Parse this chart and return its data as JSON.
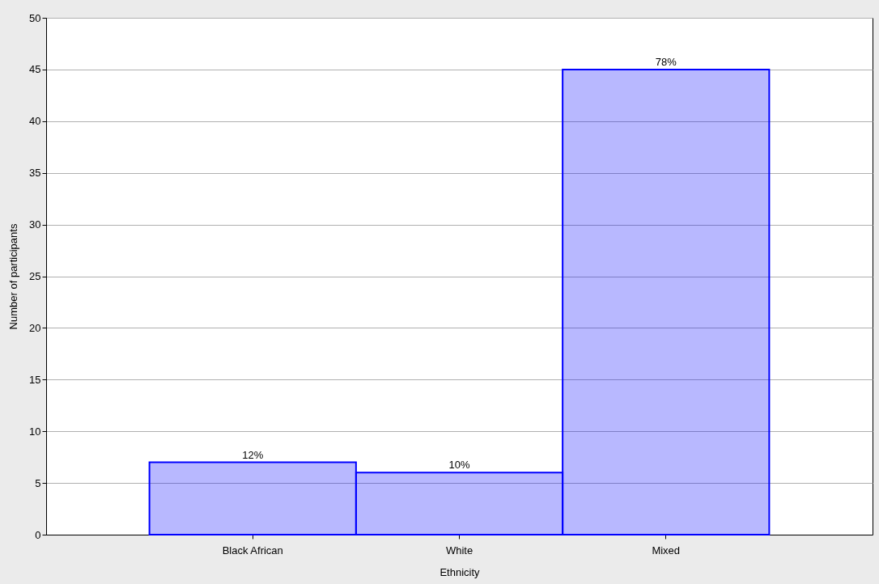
{
  "chart_data": {
    "type": "bar",
    "xlabel": "Ethnicity",
    "ylabel": "Number of participants",
    "categories": [
      "Black African",
      "White",
      "Mixed"
    ],
    "values": [
      7,
      6,
      45
    ],
    "annotations": [
      {
        "text": "12%",
        "x": "Black African",
        "y": 7
      },
      {
        "text": "10%",
        "x": "White",
        "y": 6
      },
      {
        "text": "78%",
        "x": "Mixed",
        "y": 45
      }
    ],
    "color": "#0000ff",
    "ylim": [
      0,
      50
    ],
    "yticks": [
      0,
      5,
      10,
      15,
      20,
      25,
      30,
      35,
      40,
      45,
      50
    ],
    "grid": "y"
  }
}
